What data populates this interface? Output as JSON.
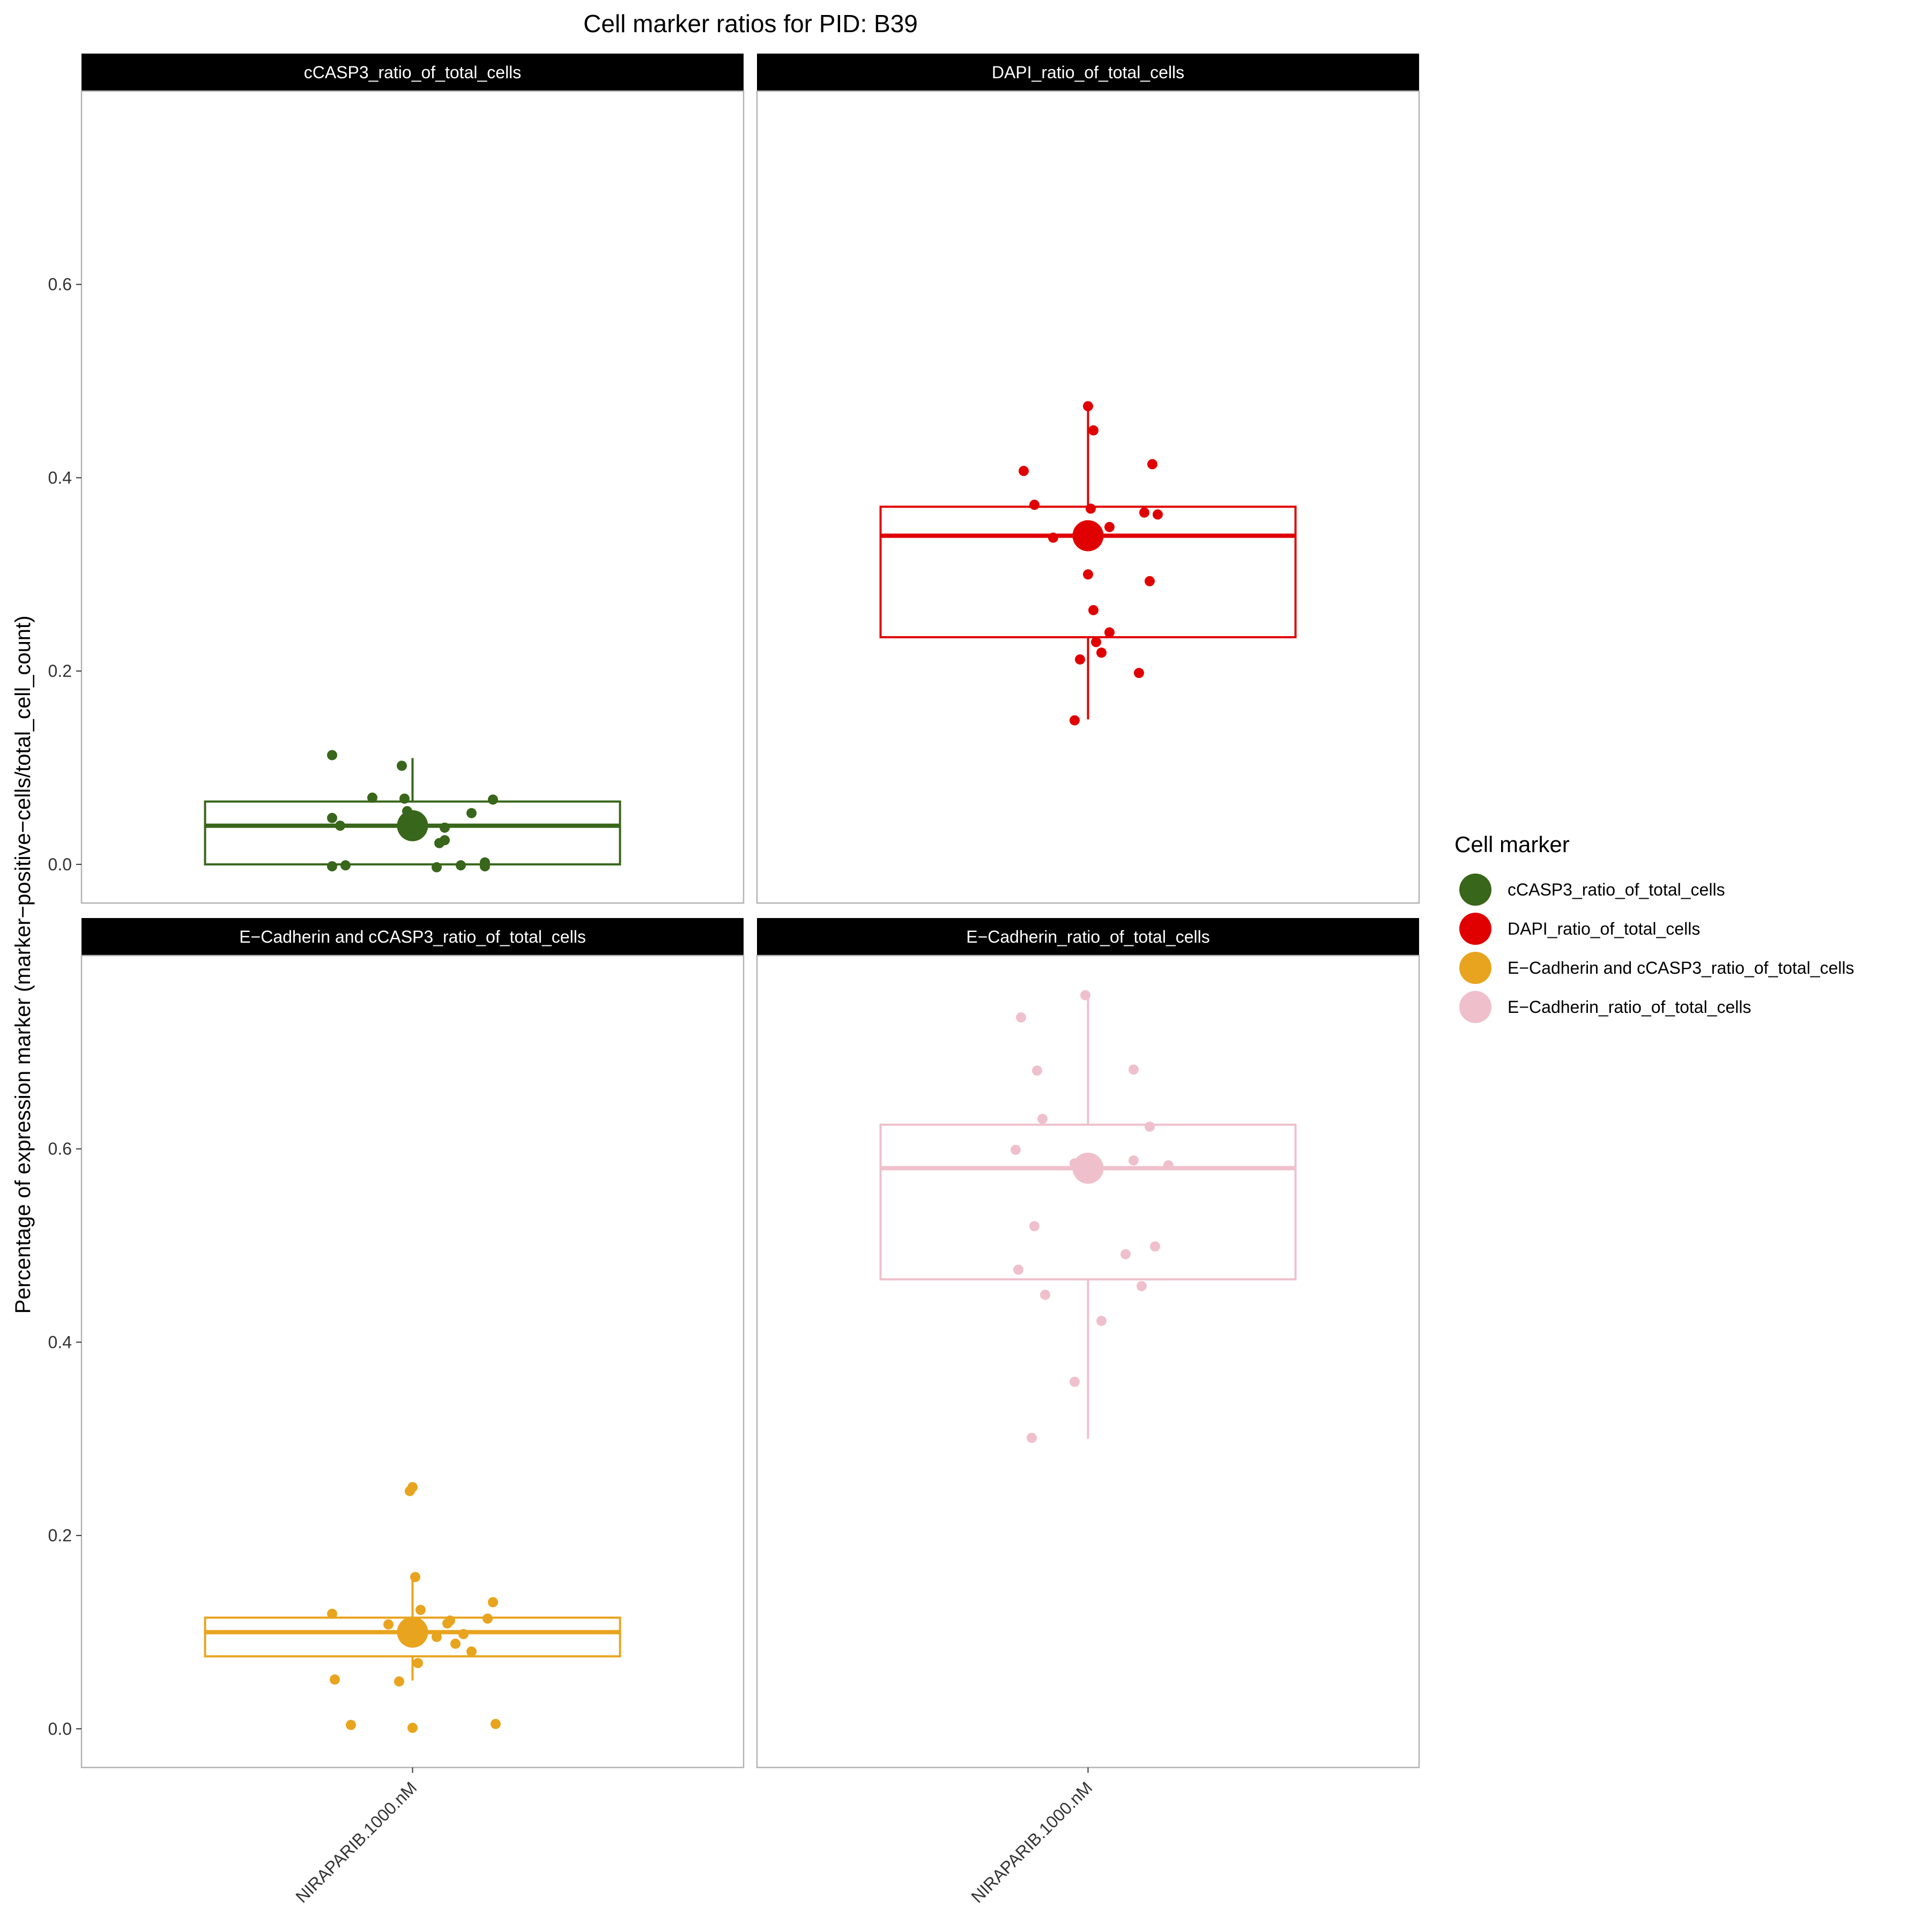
{
  "chart_data": {
    "type": "box",
    "title": "Cell marker ratios for PID: B39",
    "ylabel": "Percentage of expression marker (marker−positive−cells/total_cell_count)",
    "xlabel": "",
    "category": "NIRAPARIB.1000.nM",
    "ylim": [
      -0.04,
      0.8
    ],
    "yticks": [
      0.0,
      0.2,
      0.4,
      0.6
    ],
    "ytick_labels": [
      "0.0",
      "0.2",
      "0.4",
      "0.6"
    ],
    "grid": false,
    "legend": {
      "title": "Cell marker",
      "placement": "right",
      "items": [
        {
          "label": "cCASP3_ratio_of_total_cells",
          "color": "#38661a"
        },
        {
          "label": "DAPI_ratio_of_total_cells",
          "color": "#e00000"
        },
        {
          "label": "E−Cadherin and cCASP3_ratio_of_total_cells",
          "color": "#e8a41f"
        },
        {
          "label": "E−Cadherin_ratio_of_total_cells",
          "color": "#efc0cc"
        }
      ]
    },
    "panels": [
      {
        "strip": "cCASP3_ratio_of_total_cells",
        "color": "#38661a",
        "box": {
          "q1": 0.0,
          "median": 0.04,
          "q3": 0.065,
          "whisker_low": 0.0,
          "whisker_high": 0.11,
          "mean": 0.04
        },
        "points": [
          [
            -0.15,
            0.113
          ],
          [
            -0.02,
            0.102
          ],
          [
            -0.075,
            0.069
          ],
          [
            -0.015,
            0.068
          ],
          [
            0.15,
            0.067
          ],
          [
            0.11,
            0.053
          ],
          [
            -0.15,
            0.048
          ],
          [
            -0.135,
            0.04
          ],
          [
            0.06,
            0.038
          ],
          [
            -0.01,
            0.055
          ],
          [
            0.06,
            0.025
          ],
          [
            0.05,
            0.022
          ],
          [
            -0.15,
            -0.002
          ],
          [
            -0.125,
            -0.001
          ],
          [
            0.09,
            -0.001
          ],
          [
            0.135,
            0.002
          ],
          [
            0.135,
            -0.002
          ],
          [
            0.045,
            -0.003
          ],
          [
            0.0,
            0.046
          ]
        ]
      },
      {
        "strip": "DAPI_ratio_of_total_cells",
        "color": "#e00000",
        "box": {
          "q1": 0.235,
          "median": 0.34,
          "q3": 0.37,
          "whisker_low": 0.15,
          "whisker_high": 0.47,
          "mean": 0.34
        },
        "points": [
          [
            0.0,
            0.474
          ],
          [
            0.01,
            0.449
          ],
          [
            -0.12,
            0.407
          ],
          [
            0.12,
            0.414
          ],
          [
            -0.1,
            0.372
          ],
          [
            0.005,
            0.368
          ],
          [
            0.105,
            0.364
          ],
          [
            0.13,
            0.362
          ],
          [
            0.04,
            0.349
          ],
          [
            -0.065,
            0.338
          ],
          [
            0.0,
            0.3
          ],
          [
            0.115,
            0.293
          ],
          [
            0.01,
            0.263
          ],
          [
            0.04,
            0.24
          ],
          [
            0.015,
            0.23
          ],
          [
            0.025,
            0.219
          ],
          [
            -0.015,
            0.212
          ],
          [
            0.095,
            0.198
          ],
          [
            -0.025,
            0.149
          ]
        ]
      },
      {
        "strip": "E−Cadherin and cCASP3_ratio_of_total_cells",
        "color": "#e8a41f",
        "box": {
          "q1": 0.075,
          "median": 0.1,
          "q3": 0.115,
          "whisker_low": 0.05,
          "whisker_high": 0.16,
          "mean": 0.1
        },
        "points": [
          [
            0.0,
            0.25
          ],
          [
            -0.005,
            0.246
          ],
          [
            0.005,
            0.157
          ],
          [
            0.15,
            0.131
          ],
          [
            0.015,
            0.123
          ],
          [
            -0.15,
            0.119
          ],
          [
            0.14,
            0.114
          ],
          [
            0.07,
            0.112
          ],
          [
            0.065,
            0.109
          ],
          [
            -0.045,
            0.108
          ],
          [
            0.095,
            0.098
          ],
          [
            0.045,
            0.095
          ],
          [
            0.08,
            0.088
          ],
          [
            0.11,
            0.08
          ],
          [
            0.01,
            0.068
          ],
          [
            -0.145,
            0.051
          ],
          [
            -0.025,
            0.049
          ],
          [
            -0.115,
            0.004
          ],
          [
            0.155,
            0.005
          ],
          [
            0.0,
            0.001
          ]
        ]
      },
      {
        "strip": "E−Cadherin_ratio_of_total_cells",
        "color": "#efc0cc",
        "box": {
          "q1": 0.465,
          "median": 0.58,
          "q3": 0.625,
          "whisker_low": 0.3,
          "whisker_high": 0.76,
          "mean": 0.58
        },
        "points": [
          [
            -0.005,
            0.759
          ],
          [
            -0.125,
            0.736
          ],
          [
            -0.095,
            0.681
          ],
          [
            0.085,
            0.682
          ],
          [
            -0.085,
            0.631
          ],
          [
            0.115,
            0.623
          ],
          [
            -0.135,
            0.599
          ],
          [
            0.085,
            0.588
          ],
          [
            -0.025,
            0.585
          ],
          [
            0.15,
            0.583
          ],
          [
            -0.1,
            0.52
          ],
          [
            0.125,
            0.499
          ],
          [
            0.07,
            0.491
          ],
          [
            -0.13,
            0.475
          ],
          [
            0.1,
            0.458
          ],
          [
            -0.08,
            0.449
          ],
          [
            0.025,
            0.422
          ],
          [
            -0.025,
            0.359
          ],
          [
            -0.105,
            0.301
          ]
        ]
      }
    ]
  }
}
